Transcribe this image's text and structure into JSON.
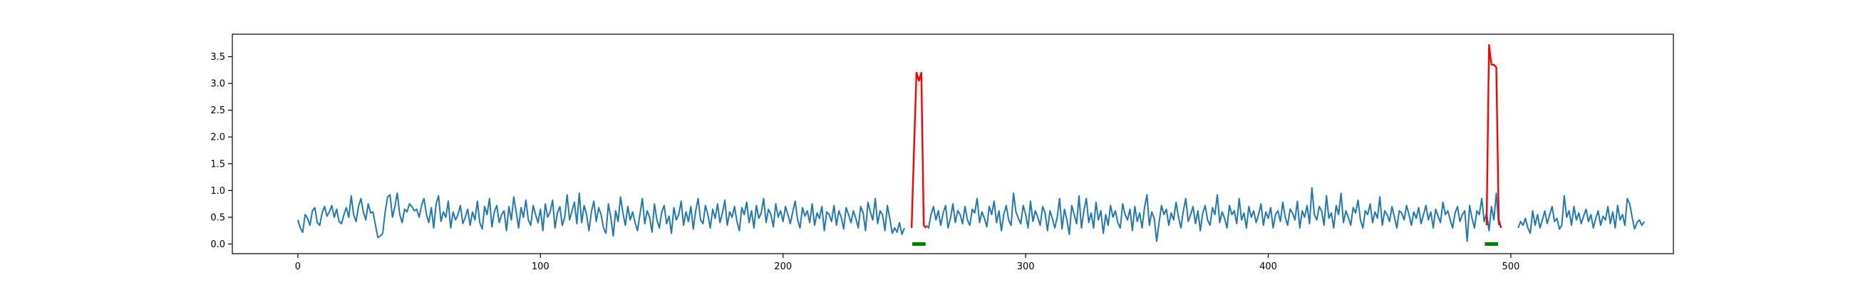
{
  "chart_data": {
    "type": "line",
    "title": "",
    "xlabel": "",
    "ylabel": "",
    "xlim": [
      -27,
      567
    ],
    "ylim": [
      -0.18,
      3.92
    ],
    "x_ticks": [
      0,
      100,
      200,
      300,
      400,
      500
    ],
    "y_ticks": [
      0.0,
      0.5,
      1.0,
      1.5,
      2.0,
      2.5,
      3.0,
      3.5
    ],
    "x_tick_labels": [
      "0",
      "100",
      "200",
      "300",
      "400",
      "500"
    ],
    "y_tick_labels": [
      "0.0",
      "0.5",
      "1.0",
      "1.5",
      "2.0",
      "2.5",
      "3.0",
      "3.5"
    ],
    "grid": false,
    "series": [
      {
        "color": "#1f77b4",
        "x_start": 0,
        "values": [
          0.45,
          0.3,
          0.22,
          0.55,
          0.48,
          0.35,
          0.62,
          0.68,
          0.4,
          0.35,
          0.58,
          0.7,
          0.52,
          0.6,
          0.72,
          0.5,
          0.65,
          0.42,
          0.38,
          0.55,
          0.68,
          0.5,
          0.9,
          0.55,
          0.42,
          0.7,
          0.85,
          0.6,
          0.45,
          0.75,
          0.58,
          0.6,
          0.35,
          0.12,
          0.15,
          0.2,
          0.6,
          0.88,
          0.92,
          0.5,
          0.7,
          0.95,
          0.55,
          0.4,
          0.65,
          0.6,
          0.75,
          0.7,
          0.62,
          0.65,
          0.5,
          0.72,
          0.85,
          0.55,
          0.4,
          0.68,
          0.3,
          0.75,
          0.9,
          0.42,
          0.6,
          0.5,
          0.8,
          0.3,
          0.6,
          0.45,
          0.55,
          0.72,
          0.38,
          0.5,
          0.65,
          0.35,
          0.6,
          0.45,
          0.8,
          0.4,
          0.28,
          0.7,
          0.55,
          0.85,
          0.32,
          0.6,
          0.72,
          0.4,
          0.55,
          0.62,
          0.25,
          0.7,
          0.45,
          0.88,
          0.6,
          0.3,
          0.68,
          0.5,
          0.82,
          0.45,
          0.35,
          0.72,
          0.55,
          0.4,
          0.65,
          0.25,
          0.75,
          0.5,
          0.6,
          0.82,
          0.3,
          0.58,
          0.7,
          0.35,
          0.5,
          0.92,
          0.45,
          0.62,
          0.78,
          0.38,
          0.95,
          0.4,
          0.72,
          0.55,
          0.25,
          0.6,
          0.8,
          0.42,
          0.68,
          0.55,
          0.3,
          0.2,
          0.75,
          0.5,
          0.15,
          0.62,
          0.42,
          0.88,
          0.58,
          0.35,
          0.7,
          0.45,
          0.6,
          0.4,
          0.25,
          0.55,
          0.85,
          0.38,
          0.62,
          0.5,
          0.22,
          0.75,
          0.45,
          0.3,
          0.6,
          0.72,
          0.38,
          0.52,
          0.2,
          0.68,
          0.45,
          0.55,
          0.8,
          0.35,
          0.6,
          0.42,
          0.7,
          0.28,
          0.62,
          0.85,
          0.45,
          0.38,
          0.72,
          0.55,
          0.3,
          0.65,
          0.48,
          0.75,
          0.4,
          0.58,
          0.82,
          0.35,
          0.6,
          0.5,
          0.7,
          0.42,
          0.25,
          0.68,
          0.55,
          0.78,
          0.4,
          0.62,
          0.3,
          0.72,
          0.48,
          0.58,
          0.85,
          0.4,
          0.65,
          0.55,
          0.32,
          0.75,
          0.5,
          0.62,
          0.42,
          0.7,
          0.55,
          0.38,
          0.6,
          0.8,
          0.45,
          0.3,
          0.68,
          0.52,
          0.62,
          0.4,
          0.75,
          0.35,
          0.58,
          0.48,
          0.7,
          0.25,
          0.6,
          0.55,
          0.42,
          0.72,
          0.35,
          0.62,
          0.5,
          0.28,
          0.68,
          0.55,
          0.4,
          0.62,
          0.48,
          0.3,
          0.7,
          0.58,
          0.25,
          0.78,
          0.6,
          0.45,
          0.85,
          0.38,
          0.62,
          0.55,
          0.25,
          0.72,
          0.48,
          0.2,
          0.3,
          0.22,
          0.4,
          0.18,
          0.3,
          null,
          null,
          null,
          null,
          null,
          null,
          null,
          null,
          0.35,
          0.3,
          0.55,
          0.7,
          0.45,
          0.62,
          0.35,
          0.58,
          0.72,
          0.3,
          0.48,
          0.75,
          0.4,
          0.62,
          0.55,
          0.38,
          0.7,
          0.45,
          0.35,
          0.65,
          0.58,
          0.85,
          0.4,
          0.6,
          0.48,
          0.32,
          0.7,
          0.55,
          0.8,
          0.4,
          0.62,
          0.25,
          0.55,
          0.72,
          0.45,
          0.35,
          0.95,
          0.6,
          0.48,
          0.38,
          0.72,
          0.55,
          0.3,
          0.8,
          0.42,
          0.62,
          0.5,
          0.35,
          0.7,
          0.58,
          0.25,
          0.62,
          0.48,
          0.3,
          0.5,
          0.85,
          0.28,
          0.65,
          0.45,
          0.18,
          0.72,
          0.55,
          0.38,
          0.9,
          0.3,
          0.62,
          0.85,
          0.4,
          0.58,
          0.3,
          0.78,
          0.45,
          0.62,
          0.2,
          0.55,
          0.35,
          0.72,
          0.5,
          0.62,
          0.4,
          0.3,
          0.75,
          0.55,
          0.45,
          0.65,
          0.25,
          0.7,
          0.42,
          0.58,
          0.3,
          0.68,
          0.92,
          0.35,
          0.6,
          0.48,
          0.05,
          0.4,
          0.72,
          0.55,
          0.65,
          0.35,
          0.58,
          0.45,
          0.78,
          0.5,
          0.3,
          0.62,
          0.85,
          0.42,
          0.55,
          0.7,
          0.38,
          0.62,
          0.25,
          0.58,
          0.72,
          0.45,
          0.35,
          0.68,
          0.55,
          0.92,
          0.4,
          0.6,
          0.48,
          0.3,
          0.72,
          0.55,
          0.62,
          0.38,
          0.85,
          0.45,
          0.58,
          0.3,
          0.7,
          0.5,
          0.62,
          0.4,
          0.55,
          0.75,
          0.35,
          0.6,
          0.48,
          0.68,
          0.3,
          0.55,
          0.62,
          0.42,
          0.78,
          0.5,
          0.35,
          0.65,
          0.58,
          0.45,
          0.8,
          0.3,
          0.62,
          0.5,
          0.72,
          0.38,
          1.05,
          0.55,
          0.45,
          0.7,
          0.62,
          0.35,
          0.9,
          0.48,
          0.58,
          0.3,
          0.72,
          0.55,
          0.95,
          0.4,
          0.62,
          0.5,
          0.35,
          0.68,
          0.58,
          0.82,
          0.45,
          0.3,
          0.62,
          0.55,
          0.75,
          0.4,
          0.6,
          0.48,
          0.88,
          0.35,
          0.62,
          0.55,
          0.42,
          0.7,
          0.5,
          0.3,
          0.62,
          0.58,
          0.45,
          0.72,
          0.55,
          0.35,
          0.6,
          0.48,
          0.68,
          0.38,
          0.55,
          0.72,
          0.45,
          0.6,
          0.3,
          0.65,
          0.52,
          0.4,
          0.78,
          0.55,
          0.62,
          0.45,
          0.3,
          0.58,
          0.7,
          0.42,
          0.55,
          0.62,
          0.05,
          0.72,
          0.48,
          0.3,
          0.62,
          0.55,
          0.85,
          0.42,
          0.58,
          0.25,
          0.7,
          0.45,
          0.95,
          0.35,
          null,
          null,
          null,
          null,
          null,
          null,
          null,
          0.3,
          0.42,
          0.35,
          0.48,
          0.3,
          0.2,
          0.62,
          0.35,
          0.55,
          0.3,
          0.45,
          0.62,
          0.38,
          0.55,
          0.7,
          0.42,
          0.48,
          0.28,
          0.35,
          0.9,
          0.5,
          0.62,
          0.35,
          0.7,
          0.45,
          0.58,
          0.38,
          0.52,
          0.65,
          0.42,
          0.55,
          0.3,
          0.48,
          0.62,
          0.35,
          0.52,
          0.45,
          0.7,
          0.38,
          0.6,
          0.3,
          0.72,
          0.45,
          0.55,
          0.35,
          0.85,
          0.75,
          0.5,
          0.28,
          0.4,
          0.45,
          0.35,
          0.42
        ]
      },
      {
        "color": "#ff0000",
        "segments": [
          {
            "x": [
              253,
              254,
              255,
              256,
              257,
              258,
              259
            ],
            "y": [
              0.3,
              1.8,
              3.2,
              3.05,
              3.2,
              0.35,
              0.3
            ]
          },
          {
            "x": [
              490,
              491,
              492,
              493,
              494,
              495,
              496
            ],
            "y": [
              0.35,
              3.72,
              3.35,
              3.35,
              3.3,
              0.45,
              0.3
            ]
          }
        ]
      }
    ],
    "markers": {
      "color": "#008000",
      "y": 0.0,
      "x": [
        254,
        255,
        256,
        257,
        258,
        490,
        491,
        492,
        493,
        494
      ]
    }
  }
}
